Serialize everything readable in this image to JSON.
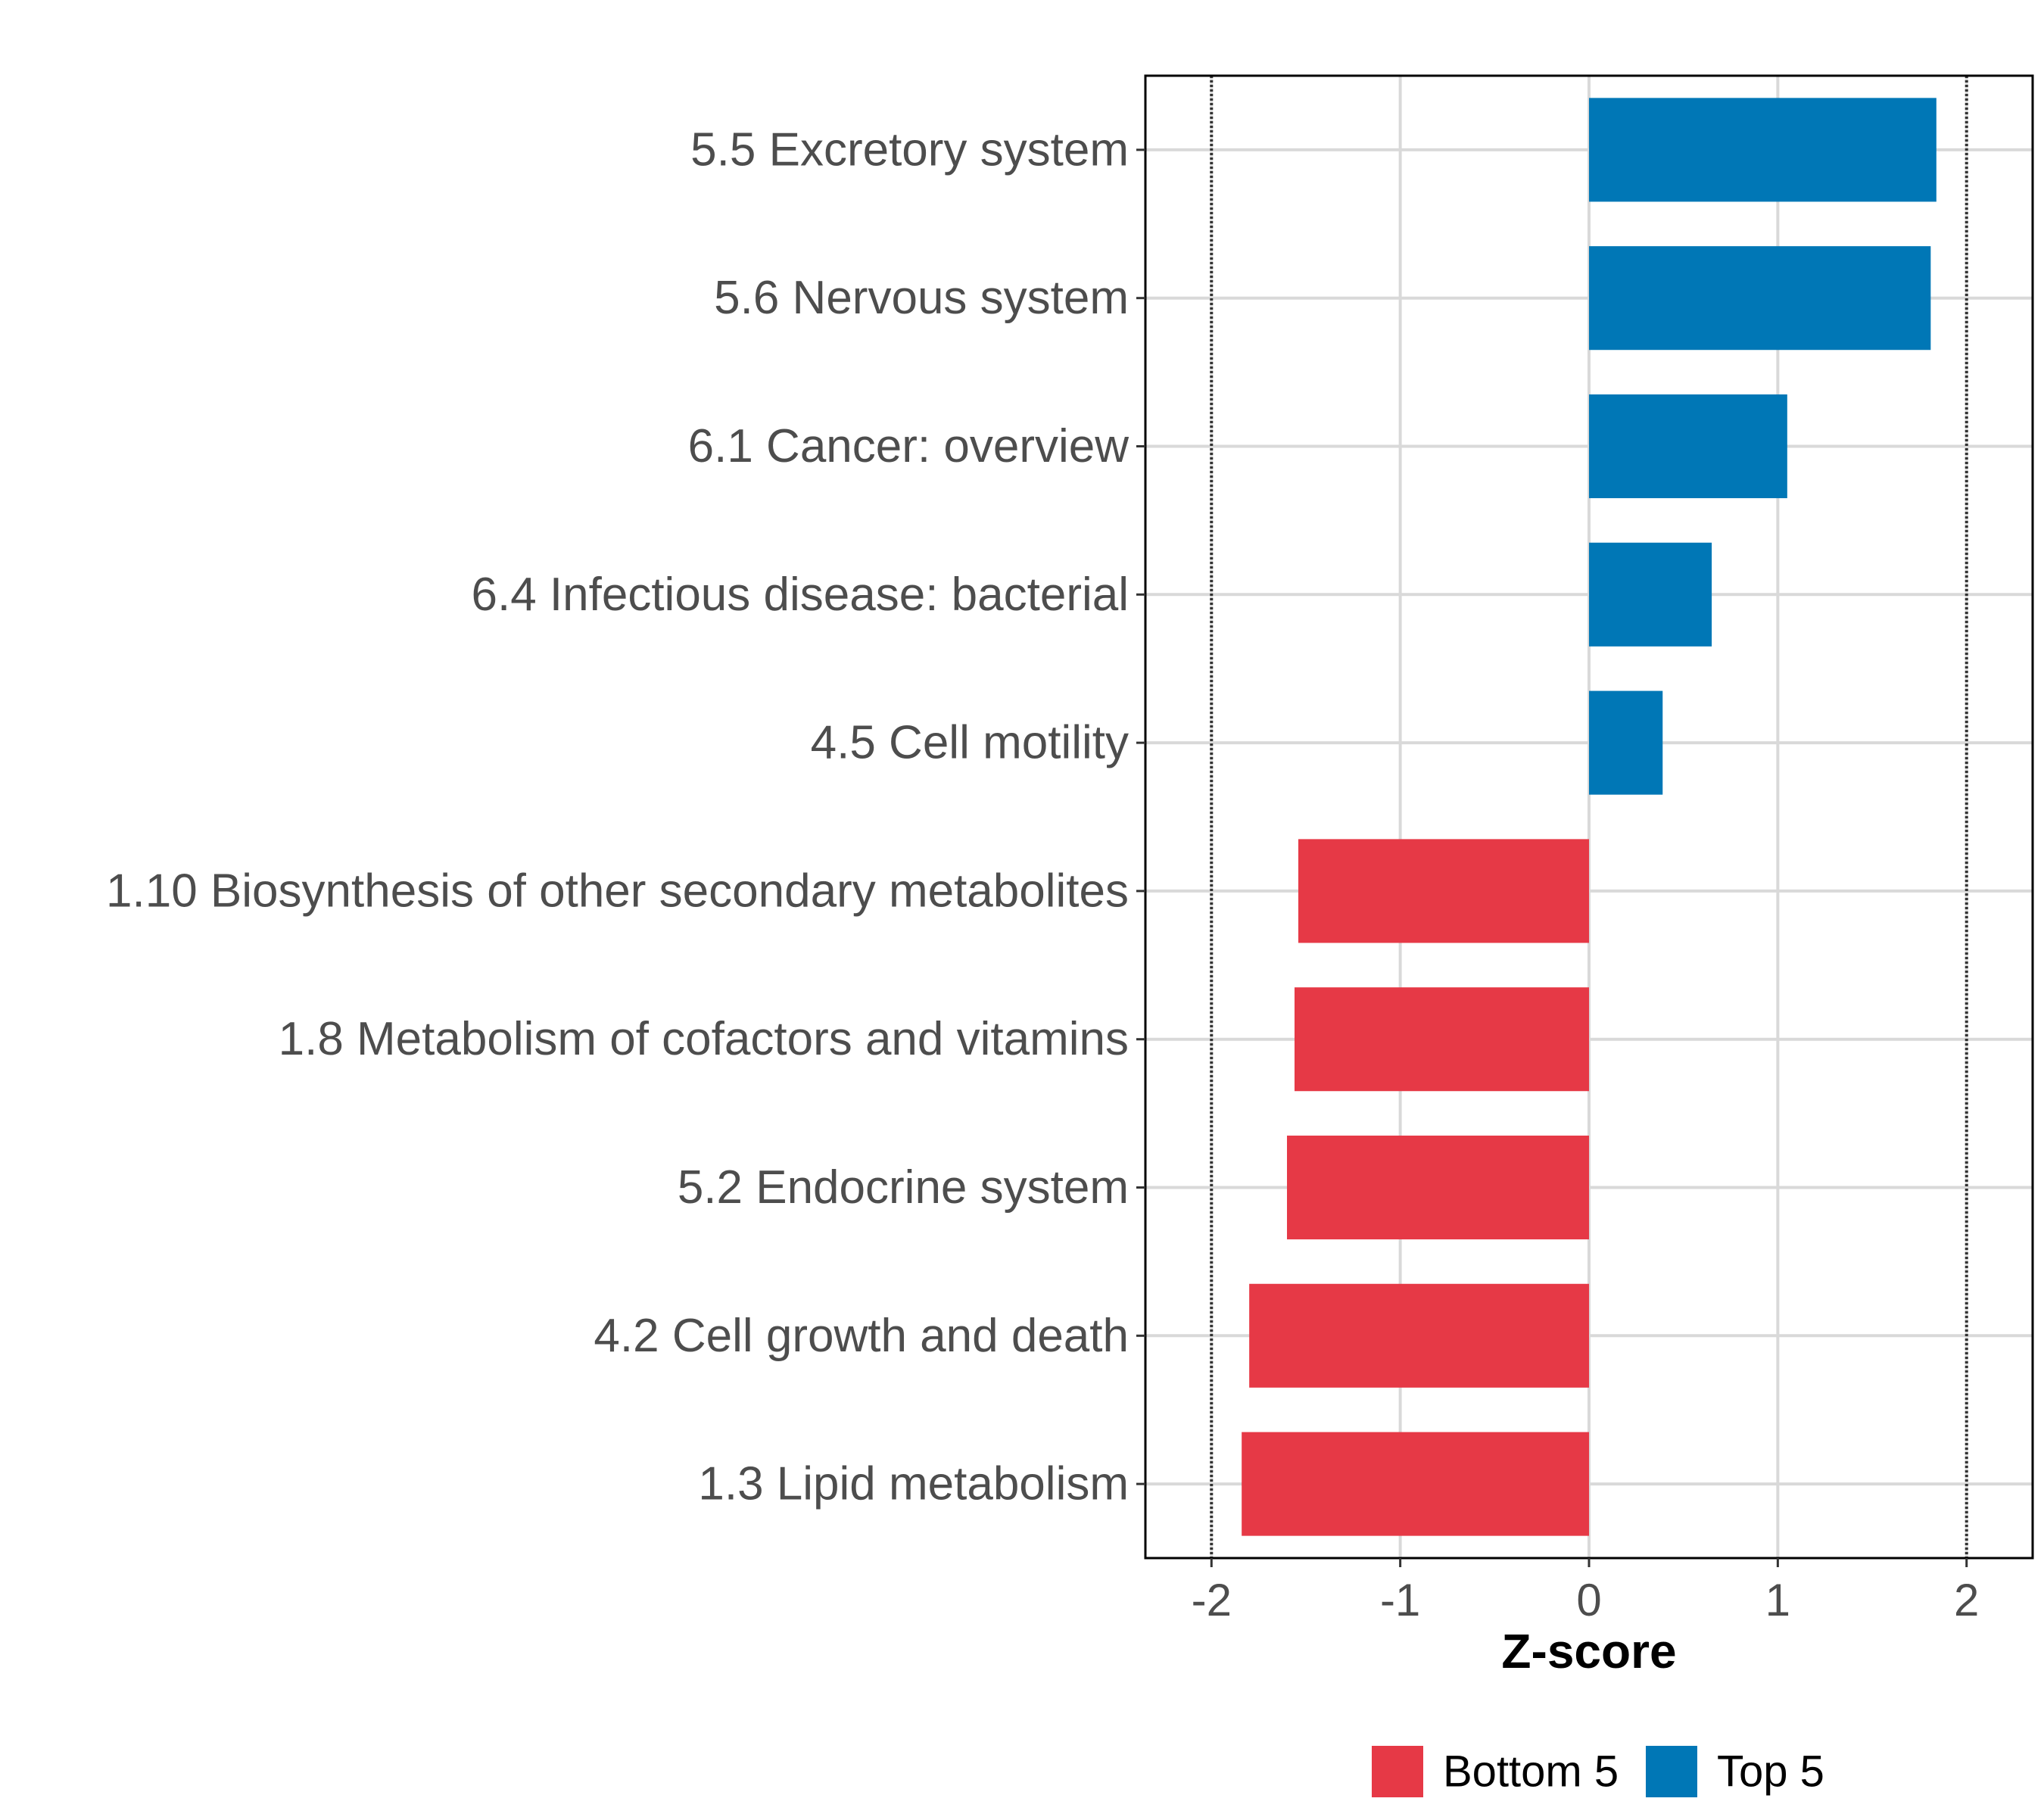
{
  "chart_data": {
    "type": "bar",
    "orientation": "horizontal",
    "categories": [
      "5.5 Excretory system",
      "5.6 Nervous system",
      "6.1 Cancer: overview",
      "6.4 Infectious disease: bacterial",
      "4.5 Cell motility",
      "1.10 Biosynthesis of other secondary metabolites",
      "1.8 Metabolism of cofactors and vitamins",
      "5.2 Endocrine system",
      "4.2 Cell growth and death",
      "1.3 Lipid metabolism"
    ],
    "values": [
      1.84,
      1.81,
      1.05,
      0.65,
      0.39,
      -1.54,
      -1.56,
      -1.6,
      -1.8,
      -1.84
    ],
    "groups": [
      "Top 5",
      "Top 5",
      "Top 5",
      "Top 5",
      "Top 5",
      "Bottom 5",
      "Bottom 5",
      "Bottom 5",
      "Bottom 5",
      "Bottom 5"
    ],
    "xlabel": "Z-score",
    "ylabel": "",
    "xlim": [
      -2.35,
      2.35
    ],
    "xticks": [
      -2,
      -1,
      0,
      1,
      2
    ],
    "xtick_labels": [
      "-2",
      "-1",
      "0",
      "1",
      "2"
    ],
    "reference_lines": [
      -2,
      2
    ],
    "grid": true,
    "legend": {
      "position": "bottom",
      "entries": [
        {
          "label": "Bottom 5",
          "color": "#E63946"
        },
        {
          "label": "Top 5",
          "color": "#0077B6"
        }
      ]
    }
  },
  "colors": {
    "top": "#0077B6",
    "bottom": "#E63946",
    "grid": "#D9D9D9",
    "axis_text": "#4D4D4D",
    "panel_border": "#000000"
  }
}
